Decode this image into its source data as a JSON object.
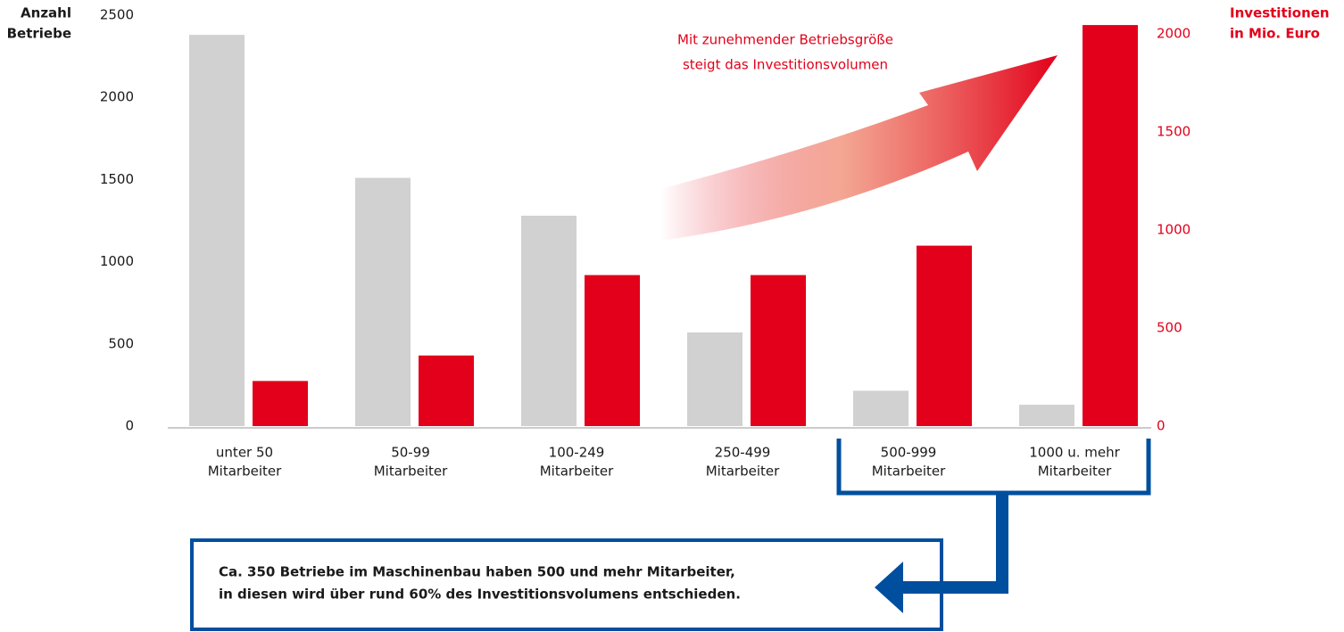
{
  "chart_data": {
    "type": "bar",
    "categories": [
      [
        "unter 50",
        "Mitarbeiter"
      ],
      [
        "50-99",
        "Mitarbeiter"
      ],
      [
        "100-249",
        "Mitarbeiter"
      ],
      [
        "250-499",
        "Mitarbeiter"
      ],
      [
        "500-999",
        "Mitarbeiter"
      ],
      [
        "1000 u. mehr",
        "Mitarbeiter"
      ]
    ],
    "series": [
      {
        "name": "Anzahl Betriebe",
        "color": "#d0d1d0",
        "values": [
          2380,
          1510,
          1280,
          570,
          215,
          130
        ]
      },
      {
        "name": "Investitionen in Mio. Euro",
        "color": "#e2001a",
        "axis": "y2",
        "values": [
          230,
          360,
          770,
          770,
          920,
          2045
        ]
      }
    ],
    "y_label": [
      "Anzahl",
      "Betriebe"
    ],
    "y2_label": [
      "Investitionen",
      "in Mio. Euro"
    ],
    "ylim": [
      0,
      2500
    ],
    "yticks": [
      0,
      500,
      1000,
      1500,
      2000,
      2500
    ],
    "y2lim": [
      0,
      2000
    ],
    "y2ticks": [
      0,
      500,
      1000,
      1500,
      2000
    ],
    "annotation": [
      "Mit zunehmender Betriebsgröße",
      "steigt das Investitionsvolumen"
    ],
    "callout": [
      "Ca. 350 Betriebe im Maschinenbau haben 500 und mehr Mitarbeiter,",
      "in diesen wird über rund 60% des Investitionsvolumens entschieden."
    ]
  }
}
